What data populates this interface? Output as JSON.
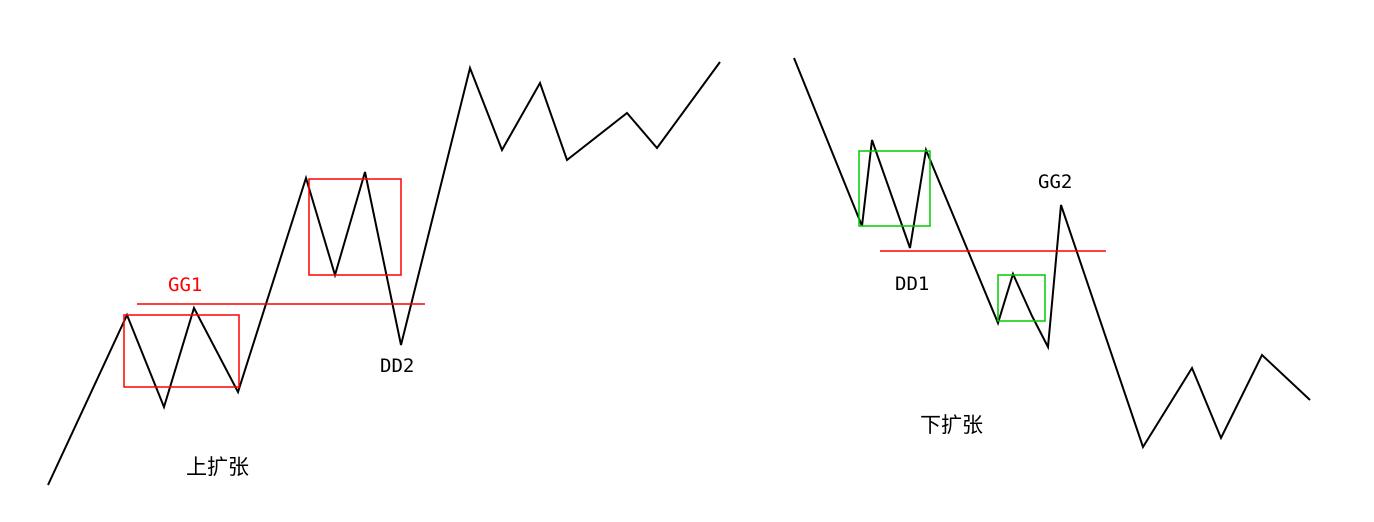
{
  "colors": {
    "line": "#000000",
    "red": "#ff0000",
    "green": "#00cc00",
    "text": "#000000"
  },
  "upper_expansion": {
    "title": "上扩张",
    "high_label": "GG1",
    "low_label": "DD2"
  },
  "lower_expansion": {
    "title": "下扩张",
    "low_label": "DD1",
    "high_label": "GG2"
  }
}
